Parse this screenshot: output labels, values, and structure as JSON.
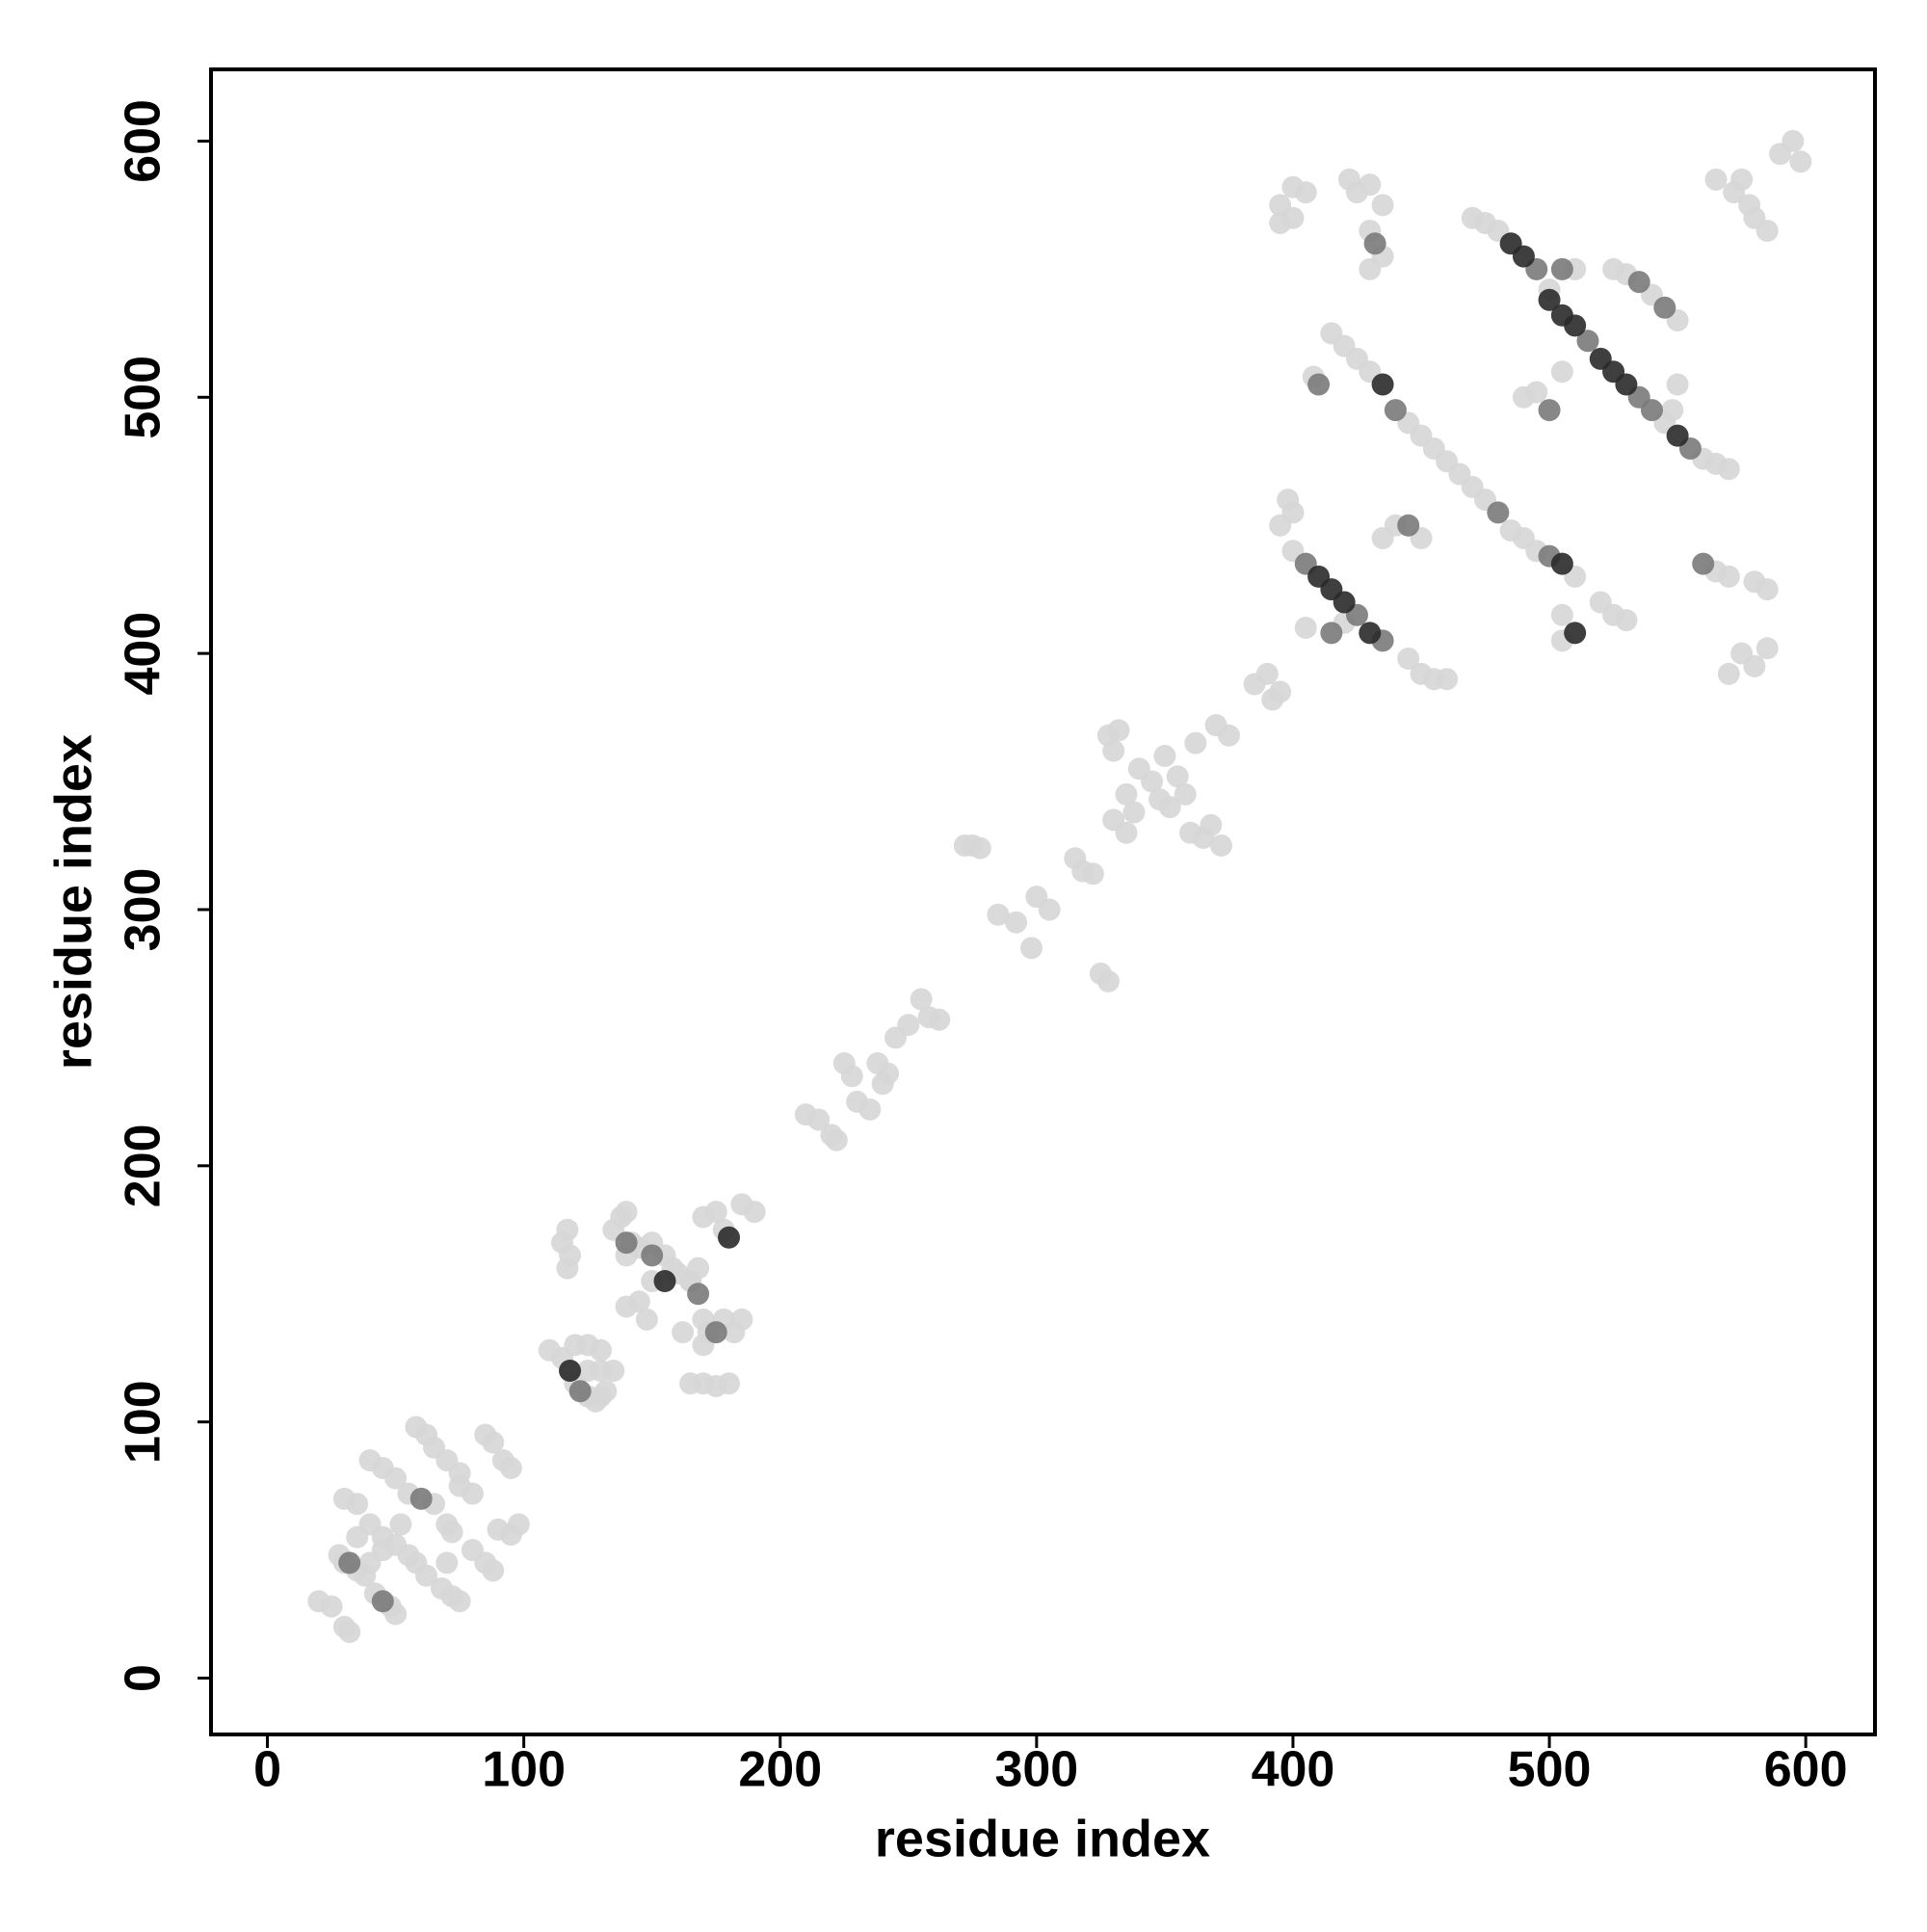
{
  "chart_data": {
    "type": "scatter",
    "xlabel": "residue index",
    "ylabel": "residue index",
    "xlim": [
      -22,
      627
    ],
    "ylim": [
      -22,
      628
    ],
    "xticks": [
      0,
      100,
      200,
      300,
      400,
      500,
      600
    ],
    "yticks": [
      0,
      100,
      200,
      300,
      400,
      500,
      600
    ],
    "series": [
      {
        "color": "#d6d6d6",
        "x": [
          20,
          25,
          30,
          32,
          28,
          30,
          35,
          38,
          30,
          35,
          40,
          45,
          40,
          45,
          50,
          55,
          42,
          48,
          50,
          55,
          58,
          62,
          58,
          62,
          65,
          70,
          65,
          70,
          72,
          68,
          72,
          75,
          80,
          85,
          88,
          85,
          88,
          92,
          95,
          75,
          80,
          90,
          95,
          98,
          50,
          52,
          35,
          75,
          70,
          40,
          45,
          110,
          115,
          118,
          120,
          125,
          128,
          115,
          117,
          118,
          117,
          125,
          130,
          135,
          130,
          132,
          135,
          138,
          140,
          142,
          140,
          145,
          150,
          155,
          158,
          160,
          150,
          145,
          148,
          140,
          165,
          170,
          172,
          165,
          168,
          170,
          175,
          178,
          178,
          182,
          185,
          170,
          165,
          170,
          175,
          180,
          185,
          190,
          162,
          130,
          125,
          120,
          210,
          215,
          220,
          222,
          225,
          228,
          230,
          235,
          238,
          240,
          242,
          245,
          250,
          255,
          258,
          262,
          272,
          275,
          278,
          285,
          292,
          298,
          300,
          305,
          315,
          318,
          322,
          325,
          328,
          328,
          330,
          332,
          335,
          338,
          340,
          345,
          348,
          350,
          352,
          355,
          358,
          360,
          362,
          365,
          368,
          370,
          372,
          375,
          330,
          335,
          385,
          390,
          392,
          395,
          470,
          475,
          480,
          500,
          545,
          560,
          565,
          570,
          415,
          420,
          425,
          430,
          445,
          450,
          455,
          460,
          465,
          470,
          475,
          485,
          490,
          495,
          510,
          520,
          525,
          530,
          400,
          445,
          450,
          455,
          460,
          395,
          400,
          405,
          400,
          395,
          422,
          425,
          430,
          435,
          430,
          435,
          430,
          575,
          578,
          580,
          585,
          590,
          595,
          598,
          572,
          565,
          525,
          530,
          540,
          550,
          408,
          495,
          505,
          510,
          490,
          420,
          405,
          395,
          400,
          398,
          440,
          450,
          435,
          505,
          505,
          565,
          570,
          580,
          585,
          575,
          580,
          585,
          570,
          550,
          548
        ],
        "values": [
          30,
          28,
          20,
          18,
          48,
          45,
          42,
          40,
          70,
          68,
          60,
          55,
          85,
          82,
          78,
          72,
          33,
          28,
          25,
          48,
          45,
          40,
          98,
          95,
          90,
          85,
          68,
          60,
          57,
          35,
          32,
          30,
          50,
          45,
          42,
          95,
          92,
          85,
          82,
          75,
          72,
          58,
          56,
          60,
          52,
          60,
          55,
          80,
          45,
          45,
          50,
          128,
          125,
          120,
          115,
          110,
          108,
          170,
          175,
          165,
          160,
          130,
          128,
          120,
          110,
          112,
          175,
          180,
          182,
          170,
          165,
          168,
          170,
          165,
          160,
          158,
          155,
          147,
          140,
          145,
          155,
          140,
          135,
          155,
          160,
          180,
          182,
          175,
          140,
          135,
          140,
          130,
          115,
          115,
          114,
          115,
          185,
          182,
          135,
          120,
          120,
          130,
          220,
          218,
          212,
          210,
          240,
          235,
          225,
          222,
          240,
          232,
          236,
          250,
          255,
          265,
          258,
          257,
          325,
          325,
          324,
          298,
          295,
          285,
          305,
          300,
          320,
          315,
          314,
          275,
          272,
          368,
          362,
          370,
          345,
          338,
          355,
          350,
          343,
          360,
          340,
          352,
          345,
          330,
          365,
          328,
          333,
          372,
          325,
          368,
          335,
          330,
          388,
          392,
          382,
          385,
          570,
          568,
          565,
          542,
          490,
          476,
          474,
          472,
          525,
          520,
          515,
          510,
          490,
          485,
          480,
          475,
          470,
          465,
          460,
          448,
          445,
          440,
          430,
          420,
          415,
          413,
          440,
          398,
          392,
          390,
          390,
          575,
          570,
          580,
          582,
          568,
          585,
          580,
          583,
          575,
          565,
          555,
          550,
          585,
          575,
          570,
          565,
          595,
          600,
          592,
          580,
          585,
          550,
          548,
          540,
          530,
          508,
          502,
          510,
          550,
          500,
          412,
          410,
          450,
          455,
          460,
          450,
          445,
          445,
          405,
          415,
          432,
          430,
          428,
          425,
          400,
          395,
          402,
          392,
          505,
          495
        ]
      },
      {
        "color": "#7a7a7a",
        "x": [
          32,
          45,
          60,
          122,
          150,
          168,
          140,
          175,
          495,
          515,
          535,
          540,
          440,
          480,
          500,
          405,
          425,
          435,
          535,
          545,
          432,
          500,
          505,
          560,
          410,
          415,
          555,
          445
        ],
        "values": [
          45,
          30,
          70,
          112,
          165,
          150,
          170,
          135,
          550,
          522,
          500,
          495,
          495,
          455,
          438,
          435,
          415,
          405,
          545,
          535,
          560,
          495,
          550,
          435,
          505,
          408,
          480,
          450
        ]
      },
      {
        "color": "#2a2a2a",
        "x": [
          118,
          155,
          180,
          435,
          500,
          505,
          510,
          520,
          525,
          530,
          505,
          410,
          415,
          420,
          430,
          510,
          550,
          485,
          490
        ],
        "values": [
          120,
          155,
          172,
          505,
          538,
          532,
          528,
          515,
          510,
          505,
          435,
          430,
          425,
          420,
          408,
          408,
          485,
          560,
          555
        ]
      }
    ]
  }
}
